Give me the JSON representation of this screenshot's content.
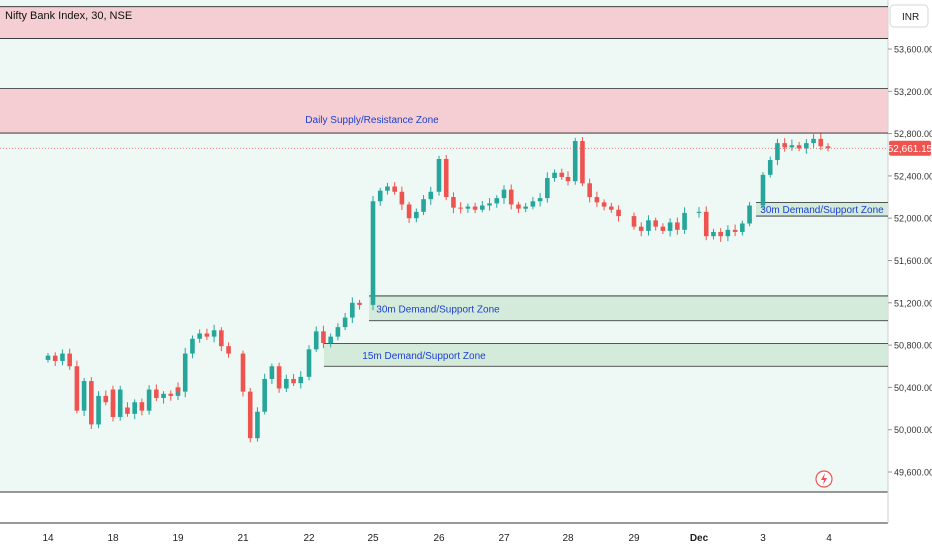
{
  "header": {
    "title": "Nifty Bank Index, 30, NSE",
    "currency": "INR"
  },
  "price_axis": {
    "ticks": [
      "53,600.00",
      "53,200.00",
      "52,800.00",
      "52,400.00",
      "52,000.00",
      "51,600.00",
      "51,200.00",
      "50,800.00",
      "50,400.00",
      "50,000.00",
      "49,600.00"
    ],
    "last_price_label": "52,661.15"
  },
  "time_axis": {
    "labels": [
      "14",
      "18",
      "19",
      "21",
      "22",
      "25",
      "26",
      "27",
      "28",
      "29",
      "Dec",
      "3",
      "4"
    ]
  },
  "zones": [
    {
      "label": "",
      "top": 54000,
      "bottom": 53700,
      "kind": "supply"
    },
    {
      "label": "Daily Supply/Resistance Zone",
      "top": 53225,
      "bottom": 52805,
      "kind": "supply"
    },
    {
      "label": "30m Demand/Support Zone",
      "top": 52150,
      "bottom": 52020,
      "kind": "demand"
    },
    {
      "label": "30m Demand/Support Zone",
      "top": 51265,
      "bottom": 51030,
      "kind": "demand"
    },
    {
      "label": "15m Demand/Support Zone",
      "top": 50815,
      "bottom": 50600,
      "kind": "demand"
    }
  ],
  "colors": {
    "up": "#26a69a",
    "down": "#ef5350",
    "supply": "#f4c7cb",
    "demand": "#cfe9d6",
    "label": "#1e40d0",
    "bg": "#eef8f5"
  },
  "chart_data": {
    "type": "candlestick",
    "title": "Nifty Bank Index, 30, NSE",
    "ylim": [
      49500,
      54000
    ],
    "last_price": 52661.15,
    "categories": [
      "14",
      "18",
      "19",
      "21",
      "22",
      "25",
      "26",
      "27",
      "28",
      "29",
      "Dec",
      "3",
      "4"
    ],
    "series": [
      {
        "session": "14",
        "closes": [
          50700,
          50650,
          50720,
          50600,
          50180,
          50460,
          50050,
          50320,
          50260,
          50190,
          50380
        ]
      },
      {
        "session": "18",
        "closes": [
          50120,
          50210,
          50150,
          50260,
          50180,
          50380,
          50300,
          50340,
          50320,
          50400
        ]
      },
      {
        "session": "19",
        "closes": [
          50360,
          50720,
          50860,
          50910,
          50880,
          50940,
          50790,
          50720
        ]
      },
      {
        "session": "21",
        "closes": [
          50360,
          49920,
          50170,
          50480,
          50600,
          50390,
          50480,
          50440,
          50500
        ]
      },
      {
        "session": "22",
        "closes": [
          50760,
          50930,
          50820,
          50880,
          50970,
          51060,
          51200,
          51180
        ]
      },
      {
        "session": "25",
        "closes": [
          52160,
          52260,
          52300,
          52250,
          52130,
          52000,
          52060,
          52180,
          52250
        ]
      },
      {
        "session": "26",
        "closes": [
          52560,
          52200,
          52100,
          52090,
          52110,
          52080,
          52120,
          52140,
          52190
        ]
      },
      {
        "session": "27",
        "closes": [
          52270,
          52130,
          52090,
          52110,
          52160,
          52190,
          52380,
          52430,
          52390
        ]
      },
      {
        "session": "28",
        "closes": [
          52350,
          52730,
          52330,
          52200,
          52150,
          52110,
          52080,
          52020
        ]
      },
      {
        "session": "29",
        "closes": [
          51920,
          51880,
          51980,
          51920,
          51880,
          51960,
          51890,
          52050
        ]
      },
      {
        "session": "Dec",
        "closes": [
          52060,
          51830,
          51870,
          51830,
          51890,
          51870,
          51950,
          52120
        ]
      },
      {
        "session": "3",
        "closes": [
          52410,
          52550,
          52710,
          52670,
          52690,
          52660,
          52710,
          52750,
          52680,
          52661
        ]
      }
    ]
  }
}
